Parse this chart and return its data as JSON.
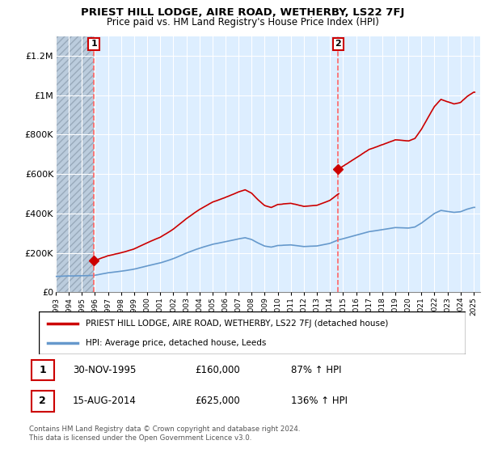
{
  "title": "PRIEST HILL LODGE, AIRE ROAD, WETHERBY, LS22 7FJ",
  "subtitle": "Price paid vs. HM Land Registry's House Price Index (HPI)",
  "ylim": [
    0,
    1300000
  ],
  "yticks": [
    0,
    200000,
    400000,
    600000,
    800000,
    1000000,
    1200000
  ],
  "ytick_labels": [
    "£0",
    "£200K",
    "£400K",
    "£600K",
    "£800K",
    "£1M",
    "£1.2M"
  ],
  "sale1_date_num": 1995.917,
  "sale1_price": 160000,
  "sale2_date_num": 2014.622,
  "sale2_price": 625000,
  "legend_line1": "PRIEST HILL LODGE, AIRE ROAD, WETHERBY, LS22 7FJ (detached house)",
  "legend_line2": "HPI: Average price, detached house, Leeds",
  "copyright": "Contains HM Land Registry data © Crown copyright and database right 2024.\nThis data is licensed under the Open Government Licence v3.0.",
  "property_color": "#cc0000",
  "hpi_color": "#6699cc",
  "plot_bg_color": "#ddeeff",
  "hatch_color": "#aabbcc",
  "grid_color": "#ffffff",
  "vline_color": "#ff6666",
  "xlim_left": 1993.0,
  "xlim_right": 2025.5
}
